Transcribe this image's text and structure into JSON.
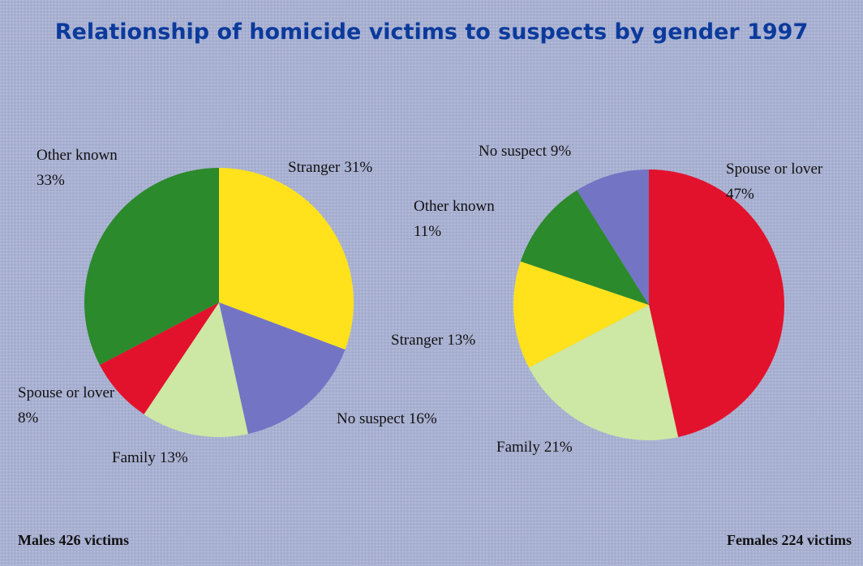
{
  "title": "Relationship of homicide victims to suspects by gender 1997",
  "chart_data": [
    {
      "type": "pie",
      "caption": "Males 426 victims",
      "categories": [
        "Stranger",
        "No suspect",
        "Family",
        "Spouse or lover",
        "Other known"
      ],
      "values": [
        31,
        16,
        13,
        8,
        33
      ],
      "value_labels": [
        "31%",
        "16%",
        "13%",
        "8%",
        "33%"
      ],
      "colors": [
        "#ffe21c",
        "#7474c4",
        "#cde8a4",
        "#e3122c",
        "#2b8a2b"
      ]
    },
    {
      "type": "pie",
      "caption": "Females 224 victims",
      "categories": [
        "Spouse or lover",
        "Family",
        "Stranger",
        "Other known",
        "No suspect"
      ],
      "values": [
        47,
        21,
        13,
        11,
        9
      ],
      "value_labels": [
        "47%",
        "21%",
        "13%",
        "11%",
        "9%"
      ],
      "colors": [
        "#e3122c",
        "#cde8a4",
        "#ffe21c",
        "#2b8a2b",
        "#7474c4"
      ]
    }
  ]
}
